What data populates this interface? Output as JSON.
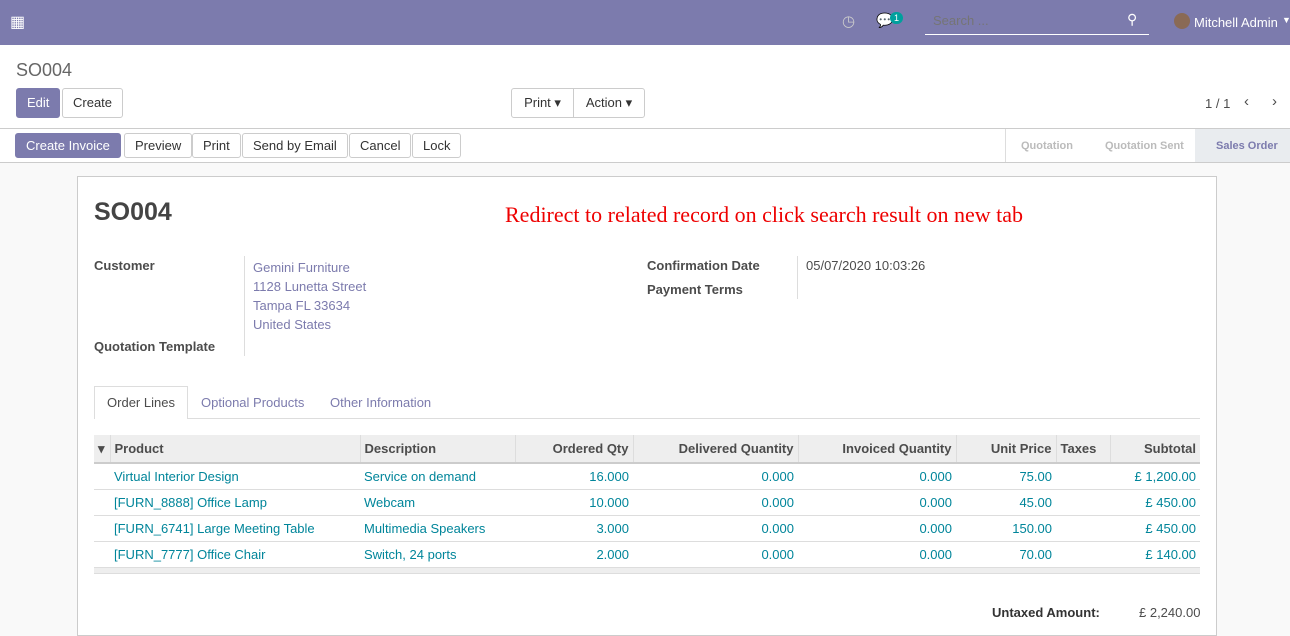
{
  "nav": {
    "search_placeholder": "Search ...",
    "badge": "1",
    "user": "Mitchell Admin"
  },
  "breadcrumb": "SO004",
  "buttons": {
    "edit": "Edit",
    "create": "Create",
    "print": "Print",
    "action": "Action",
    "pager": "1 / 1"
  },
  "status_buttons": [
    "Create Invoice",
    "Preview",
    "Print",
    "Send by Email",
    "Cancel",
    "Lock"
  ],
  "stages": [
    "Quotation",
    "Quotation Sent",
    "Sales Order"
  ],
  "sheet": {
    "title": "SO004",
    "note": "Redirect to related record on click search result on new tab",
    "customer_label": "Customer",
    "customer": [
      "Gemini Furniture",
      "1128 Lunetta Street",
      "Tampa FL 33634",
      "United States"
    ],
    "template_label": "Quotation Template",
    "confirm_label": "Confirmation Date",
    "confirm_value": "05/07/2020 10:03:26",
    "terms_label": "Payment Terms"
  },
  "tabs": [
    "Order Lines",
    "Optional Products",
    "Other Information"
  ],
  "table": {
    "headers": [
      "Product",
      "Description",
      "Ordered Qty",
      "Delivered Quantity",
      "Invoiced Quantity",
      "Unit Price",
      "Taxes",
      "Subtotal"
    ],
    "rows": [
      [
        "Virtual Interior Design",
        "Service on demand",
        "16.000",
        "0.000",
        "0.000",
        "75.00",
        "",
        "£ 1,200.00"
      ],
      [
        "[FURN_8888] Office Lamp",
        "Webcam",
        "10.000",
        "0.000",
        "0.000",
        "45.00",
        "",
        "£ 450.00"
      ],
      [
        "[FURN_6741] Large Meeting Table",
        "Multimedia Speakers",
        "3.000",
        "0.000",
        "0.000",
        "150.00",
        "",
        "£ 450.00"
      ],
      [
        "[FURN_7777] Office Chair",
        "Switch, 24 ports",
        "2.000",
        "0.000",
        "0.000",
        "70.00",
        "",
        "£ 140.00"
      ]
    ]
  },
  "totals": {
    "untaxed_label": "Untaxed Amount:",
    "untaxed": "£ 2,240.00"
  }
}
